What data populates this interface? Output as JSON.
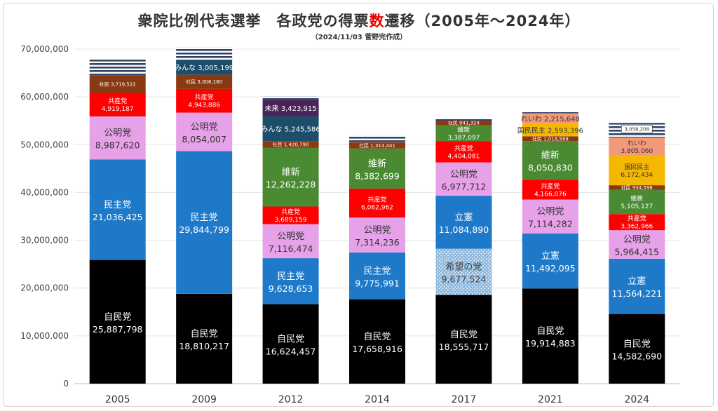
{
  "header": {
    "title_before": "衆院比例代表選挙　各政党の得票",
    "title_highlight": "数",
    "title_after": "遷移（2005年～2024年）",
    "subtitle": "（2024/11/03 菅野完作成）"
  },
  "chart_data": {
    "type": "bar",
    "stacked": true,
    "title": "衆院比例代表選挙　各政党の得票数遷移（2005年～2024年）",
    "subtitle": "（2024/11/03 菅野完作成）",
    "xlabel": "",
    "ylabel": "",
    "ylim": [
      0,
      70000000
    ],
    "yticks": [
      0,
      10000000,
      20000000,
      30000000,
      40000000,
      50000000,
      60000000,
      70000000
    ],
    "ytick_labels": [
      "0",
      "10,000,000",
      "20,000,000",
      "30,000,000",
      "40,000,000",
      "50,000,000",
      "60,000,000",
      "70,000,000"
    ],
    "grid": true,
    "colors": {
      "ldp": "#000000",
      "dpj": "#1e7ac8",
      "cdp": "#1e7ac8",
      "kibo": "#8db8dd",
      "komeito": "#e6a1e8",
      "jcp": "#ff0000",
      "ishin": "#4a8a32",
      "sdp": "#8a3a12",
      "minna": "#1d4d6b",
      "mirai": "#4a2456",
      "reiwa": "#f2997a",
      "dpfp": "#f5b800",
      "other": "#334466"
    },
    "years": [
      {
        "year": "2005",
        "total_label": "",
        "segments": [
          {
            "party": "自民党",
            "color_key": "ldp",
            "value": 25887798,
            "value_label": "25,887,798",
            "label_size": "large"
          },
          {
            "party": "民主党",
            "color_key": "dpj",
            "value": 21036425,
            "value_label": "21,036,425",
            "label_size": "large"
          },
          {
            "party": "公明党",
            "color_key": "komeito",
            "value": 8987620,
            "value_label": "8,987,620",
            "label_size": "large"
          },
          {
            "party": "共産党",
            "color_key": "jcp",
            "value": 4919187,
            "value_label": "4,919,187",
            "label_size": "small"
          },
          {
            "party": "社民",
            "color_key": "sdp",
            "value": 3719522,
            "value_label": "3,719,522",
            "label_size": "inline"
          },
          {
            "party": "",
            "color_key": "other",
            "value": 3300000,
            "value_label": "",
            "label_size": "none",
            "striped": true
          }
        ]
      },
      {
        "year": "2009",
        "total_label": "",
        "segments": [
          {
            "party": "自民党",
            "color_key": "ldp",
            "value": 18810217,
            "value_label": "18,810,217",
            "label_size": "large"
          },
          {
            "party": "民主党",
            "color_key": "dpj",
            "value": 29844799,
            "value_label": "29,844,799",
            "label_size": "large"
          },
          {
            "party": "公明党",
            "color_key": "komeito",
            "value": 8054007,
            "value_label": "8,054,007",
            "label_size": "large"
          },
          {
            "party": "共産党",
            "color_key": "jcp",
            "value": 4943886,
            "value_label": "4,943,886",
            "label_size": "small"
          },
          {
            "party": "社民",
            "color_key": "sdp",
            "value": 3006160,
            "value_label": "3,006,160",
            "label_size": "inline"
          },
          {
            "party": "みんな",
            "color_key": "minna",
            "value": 3005199,
            "value_label": "3,005,199",
            "label_size": "inline-large"
          },
          {
            "party": "",
            "color_key": "other",
            "value": 2700000,
            "value_label": "",
            "label_size": "none",
            "striped": true
          }
        ]
      },
      {
        "year": "2012",
        "total_label": "",
        "segments": [
          {
            "party": "自民党",
            "color_key": "ldp",
            "value": 16624457,
            "value_label": "16,624,457",
            "label_size": "large"
          },
          {
            "party": "民主党",
            "color_key": "dpj",
            "value": 9628653,
            "value_label": "9,628,653",
            "label_size": "large"
          },
          {
            "party": "公明党",
            "color_key": "komeito",
            "value": 7116474,
            "value_label": "7,116,474",
            "label_size": "large"
          },
          {
            "party": "共産党",
            "color_key": "jcp",
            "value": 3689159,
            "value_label": "3,689,159",
            "label_size": "small"
          },
          {
            "party": "維新",
            "color_key": "ishin",
            "value": 12262228,
            "value_label": "12,262,228",
            "label_size": "large"
          },
          {
            "party": "社民",
            "color_key": "sdp",
            "value": 1420790,
            "value_label": "1,420,790",
            "label_size": "inline"
          },
          {
            "party": "みんな",
            "color_key": "minna",
            "value": 5245586,
            "value_label": "5,245,586",
            "label_size": "inline-large"
          },
          {
            "party": "未来",
            "color_key": "mirai",
            "value": 3423915,
            "value_label": "3,423,915",
            "label_size": "inline-large"
          },
          {
            "party": "",
            "color_key": "other",
            "value": 700000,
            "value_label": "",
            "label_size": "none",
            "striped": true
          }
        ]
      },
      {
        "year": "2014",
        "total_label": "",
        "segments": [
          {
            "party": "自民党",
            "color_key": "ldp",
            "value": 17658916,
            "value_label": "17,658,916",
            "label_size": "large"
          },
          {
            "party": "民主党",
            "color_key": "dpj",
            "value": 9775991,
            "value_label": "9,775,991",
            "label_size": "large"
          },
          {
            "party": "公明党",
            "color_key": "komeito",
            "value": 7314236,
            "value_label": "7,314,236",
            "label_size": "large"
          },
          {
            "party": "共産党",
            "color_key": "jcp",
            "value": 6062962,
            "value_label": "6,062,962",
            "label_size": "small"
          },
          {
            "party": "維新",
            "color_key": "ishin",
            "value": 8382699,
            "value_label": "8,382,699",
            "label_size": "large"
          },
          {
            "party": "社民",
            "color_key": "sdp",
            "value": 1314441,
            "value_label": "1,314,441",
            "label_size": "inline"
          },
          {
            "party": "",
            "color_key": "other",
            "value": 1500000,
            "value_label": "",
            "label_size": "none",
            "striped": true
          }
        ]
      },
      {
        "year": "2017",
        "total_label": "",
        "segments": [
          {
            "party": "自民党",
            "color_key": "ldp",
            "value": 18555717,
            "value_label": "18,555,717",
            "label_size": "large"
          },
          {
            "party": "希望の党",
            "color_key": "kibo",
            "value": 9677524,
            "value_label": "9,677,524",
            "label_size": "large",
            "dotted": true
          },
          {
            "party": "立憲",
            "color_key": "cdp",
            "value": 11084890,
            "value_label": "11,084,890",
            "label_size": "large"
          },
          {
            "party": "公明党",
            "color_key": "komeito",
            "value": 6977712,
            "value_label": "6,977,712",
            "label_size": "large"
          },
          {
            "party": "共産党",
            "color_key": "jcp",
            "value": 4404081,
            "value_label": "4,404,081",
            "label_size": "small"
          },
          {
            "party": "維新",
            "color_key": "ishin",
            "value": 3387097,
            "value_label": "3,387,097",
            "label_size": "small"
          },
          {
            "party": "社民",
            "color_key": "sdp",
            "value": 941324,
            "value_label": "941,324",
            "label_size": "inline"
          },
          {
            "party": "",
            "color_key": "other",
            "value": 500000,
            "value_label": "",
            "label_size": "none",
            "striped": true
          }
        ]
      },
      {
        "year": "2021",
        "total_label": "",
        "segments": [
          {
            "party": "自民党",
            "color_key": "ldp",
            "value": 19914883,
            "value_label": "19,914,883",
            "label_size": "large"
          },
          {
            "party": "立憲",
            "color_key": "cdp",
            "value": 11492095,
            "value_label": "11,492,095",
            "label_size": "large"
          },
          {
            "party": "公明党",
            "color_key": "komeito",
            "value": 7114282,
            "value_label": "7,114,282",
            "label_size": "large"
          },
          {
            "party": "共産党",
            "color_key": "jcp",
            "value": 4166076,
            "value_label": "4,166,076",
            "label_size": "small"
          },
          {
            "party": "維新",
            "color_key": "ishin",
            "value": 8050830,
            "value_label": "8,050,830",
            "label_size": "large"
          },
          {
            "party": "社民",
            "color_key": "sdp",
            "value": 1018588,
            "value_label": "1,018,588",
            "label_size": "inline"
          },
          {
            "party": "国民民主",
            "color_key": "dpfp",
            "value": 2593396,
            "value_label": "2,593,396",
            "label_size": "inline-large"
          },
          {
            "party": "れいわ",
            "color_key": "reiwa",
            "value": 2215648,
            "value_label": "2,215,648",
            "label_size": "inline-large"
          },
          {
            "party": "",
            "color_key": "other",
            "value": 500000,
            "value_label": "",
            "label_size": "none",
            "striped": true
          }
        ]
      },
      {
        "year": "2024",
        "total_label": "3,058,208",
        "segments": [
          {
            "party": "自民党",
            "color_key": "ldp",
            "value": 14582690,
            "value_label": "14,582,690",
            "label_size": "large"
          },
          {
            "party": "立憲",
            "color_key": "cdp",
            "value": 11564221,
            "value_label": "11,564,221",
            "label_size": "large"
          },
          {
            "party": "公明党",
            "color_key": "komeito",
            "value": 5964415,
            "value_label": "5,964,415",
            "label_size": "large"
          },
          {
            "party": "共産党",
            "color_key": "jcp",
            "value": 3362966,
            "value_label": "3,362,966",
            "label_size": "small"
          },
          {
            "party": "維新",
            "color_key": "ishin",
            "value": 5105127,
            "value_label": "5,105,127",
            "label_size": "small"
          },
          {
            "party": "社民",
            "color_key": "sdp",
            "value": 934598,
            "value_label": "934,598",
            "label_size": "inline"
          },
          {
            "party": "国民民主",
            "color_key": "dpfp",
            "value": 6172434,
            "value_label": "6,172,434",
            "label_size": "small"
          },
          {
            "party": "れいわ",
            "color_key": "reiwa",
            "value": 3805060,
            "value_label": "3,805,060",
            "label_size": "small"
          },
          {
            "party": "",
            "color_key": "other",
            "value": 3058208,
            "value_label": "",
            "label_size": "none",
            "striped": true
          }
        ]
      }
    ]
  }
}
